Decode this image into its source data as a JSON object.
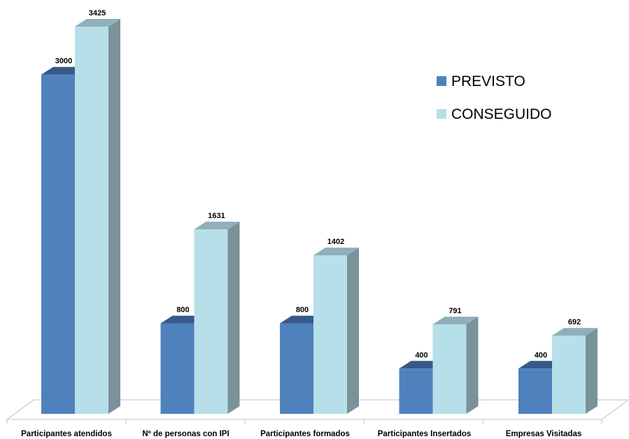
{
  "chart_data": {
    "type": "bar",
    "style": "3d-clustered-column",
    "categories": [
      "Participantes atendidos",
      "Nº de personas con IPI",
      "Participantes formados",
      "Participantes Insertados",
      "Empresas Visitadas"
    ],
    "series": [
      {
        "name": "PREVISTO",
        "values": [
          3000,
          800,
          800,
          400,
          400
        ],
        "color": "#4f81bd"
      },
      {
        "name": "CONSEGUIDO",
        "values": [
          3425,
          1631,
          1402,
          791,
          692
        ],
        "color": "#b7dfe9"
      }
    ],
    "title": "",
    "xlabel": "",
    "ylabel": "",
    "ylim": [
      0,
      3425
    ],
    "grid": false,
    "legend_position": "top-right",
    "data_labels": true
  }
}
